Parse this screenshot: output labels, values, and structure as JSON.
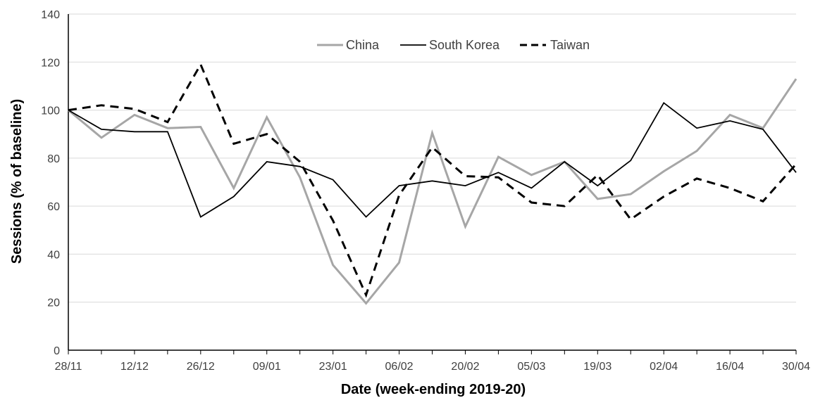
{
  "chart_data": {
    "type": "line",
    "title": "",
    "xlabel": "Date (week-ending 2019-20)",
    "ylabel": "Sessions (% of baseline)",
    "ylim": [
      0,
      140
    ],
    "yticks": [
      0,
      20,
      40,
      60,
      80,
      100,
      120,
      140
    ],
    "grid": "horizontal",
    "legend_position": "top-center",
    "x": [
      "28/11",
      "05/12",
      "12/12",
      "19/12",
      "26/12",
      "02/01",
      "09/01",
      "16/01",
      "23/01",
      "30/01",
      "06/02",
      "13/02",
      "20/02",
      "27/02",
      "05/03",
      "12/03",
      "19/03",
      "26/03",
      "02/04",
      "09/04",
      "16/04",
      "23/04",
      "30/04"
    ],
    "x_tick_labels": [
      "28/11",
      "12/12",
      "26/12",
      "09/01",
      "23/01",
      "06/02",
      "20/02",
      "05/03",
      "19/03",
      "02/04",
      "16/04",
      "30/04"
    ],
    "series": [
      {
        "name": "China",
        "color": "#a6a6a6",
        "dash": "solid",
        "values": [
          100,
          88.5,
          98,
          92.5,
          93,
          67.5,
          97,
          72,
          35.5,
          19.5,
          36.5,
          90.5,
          51.5,
          80.5,
          73,
          78.5,
          63,
          65,
          74.5,
          83,
          98,
          92.5,
          113
        ]
      },
      {
        "name": "South Korea",
        "color": "#000000",
        "dash": "solid",
        "values": [
          100,
          92,
          91,
          91,
          55.5,
          64,
          78.5,
          76.5,
          71,
          55.5,
          68.5,
          70.5,
          68.5,
          74,
          67.5,
          78.5,
          68.5,
          79,
          103,
          92.5,
          95.5,
          92,
          74
        ]
      },
      {
        "name": "Taiwan",
        "color": "#000000",
        "dash": "dashed",
        "values": [
          100,
          102,
          100.5,
          95,
          119,
          86,
          90,
          78.5,
          54,
          23,
          64.5,
          84.5,
          72.5,
          72,
          61.5,
          60,
          73,
          54.5,
          64,
          71.5,
          67.5,
          62,
          77.5
        ]
      }
    ]
  }
}
